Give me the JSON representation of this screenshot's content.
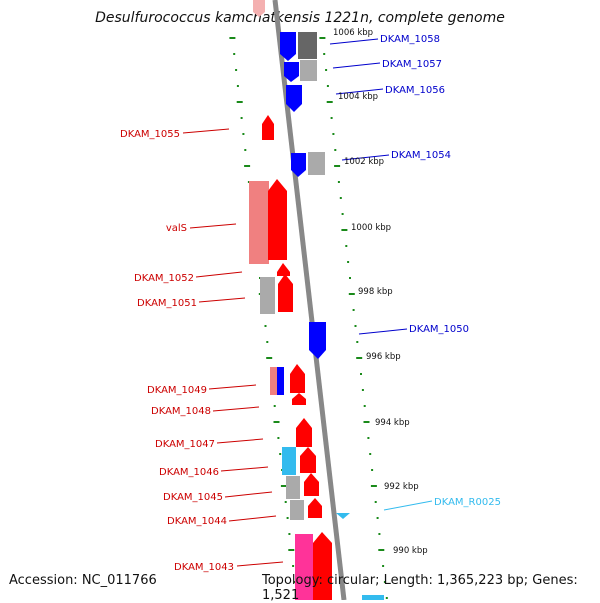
{
  "title": "Desulfurococcus kamchatkensis 1221n, complete genome",
  "footer": {
    "accession": "Accession: NC_011766",
    "topology": "Topology: circular; Length: 1,365,223 bp; Genes: 1,521"
  },
  "colors": {
    "backbone": "#888888",
    "tick": "#1a8a1a",
    "forward_gene": "#ff0000",
    "forward_gene_light": "#f08080",
    "reverse_gene": "#0000ff",
    "rna_gene": "#33bbee",
    "pseudo_gene": "#aaaaaa",
    "highlight_gene": "#ff3399",
    "forward_label": "#cc0000",
    "reverse_label": "#0000cc",
    "rna_label": "#33bbee"
  },
  "kbp_labels": [
    "1006 kbp",
    "1004 kbp",
    "1002 kbp",
    "1000 kbp",
    "998 kbp",
    "996 kbp",
    "994 kbp",
    "992 kbp",
    "990 kbp"
  ],
  "left_labels": [
    "DKAM_1055",
    "valS",
    "DKAM_1052",
    "DKAM_1051",
    "DKAM_1049",
    "DKAM_1048",
    "DKAM_1047",
    "DKAM_1046",
    "DKAM_1045",
    "DKAM_1044",
    "DKAM_1043"
  ],
  "right_labels": [
    "DKAM_1058",
    "DKAM_1057",
    "DKAM_1056",
    "DKAM_1054",
    "DKAM_1050"
  ],
  "rna_labels": [
    "DKAM_R0025"
  ]
}
